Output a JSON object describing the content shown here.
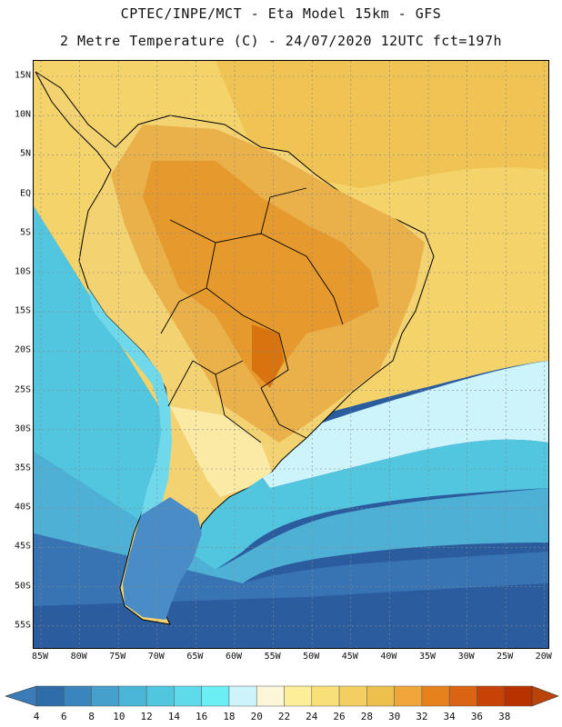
{
  "title": {
    "line1": "CPTEC/INPE/MCT -  Eta Model 15km - GFS",
    "line2": "2 Metre Temperature (C) - 24/07/2020 12UTC fct=197h"
  },
  "latitude_labels": [
    "15N",
    "10N",
    "5N",
    "EQ",
    "5S",
    "10S",
    "15S",
    "20S",
    "25S",
    "30S",
    "35S",
    "40S",
    "45S",
    "50S",
    "55S"
  ],
  "longitude_labels": [
    "85W",
    "80W",
    "75W",
    "70W",
    "65W",
    "60W",
    "55W",
    "50W",
    "45W",
    "40W",
    "35W",
    "30W",
    "25W",
    "20W"
  ],
  "colorbar": {
    "labels": [
      "4",
      "6",
      "8",
      "10",
      "12",
      "14",
      "16",
      "18",
      "20",
      "22",
      "24",
      "26",
      "28",
      "30",
      "32",
      "34",
      "36",
      "38"
    ],
    "colors": [
      "#2e6da8",
      "#3b85bd",
      "#45a0cc",
      "#4cb6d9",
      "#53c6df",
      "#5edaea",
      "#6beef4",
      "#cdf3fb",
      "#fdf6d8",
      "#fdee9a",
      "#f8df77",
      "#f2cf60",
      "#ecc04c",
      "#f0a63a",
      "#e5821e",
      "#da6414",
      "#c84208",
      "#b83200"
    ],
    "low_color": "#3a7bb8",
    "high_color": "#b8440a"
  },
  "field_colors": {
    "ocean_far_south": "#2a5c9e",
    "ocean_south": "#3873b4",
    "ocean_mid": "#4fb0d6",
    "ocean_subtropic": "#52c6df",
    "ocean_tropic_pale": "#cdf3fb",
    "ocean_tropic": "#f4d36a",
    "ocean_tropic_dark": "#efc454",
    "land_hot": "#e69a2e",
    "land_warm": "#eab04a",
    "land_mild": "#f3d272",
    "land_cool": "#fbe9a6",
    "andes": "#6fd8ea",
    "patagonia": "#4a8dc6",
    "line": "#000000",
    "grid": "#888888"
  }
}
